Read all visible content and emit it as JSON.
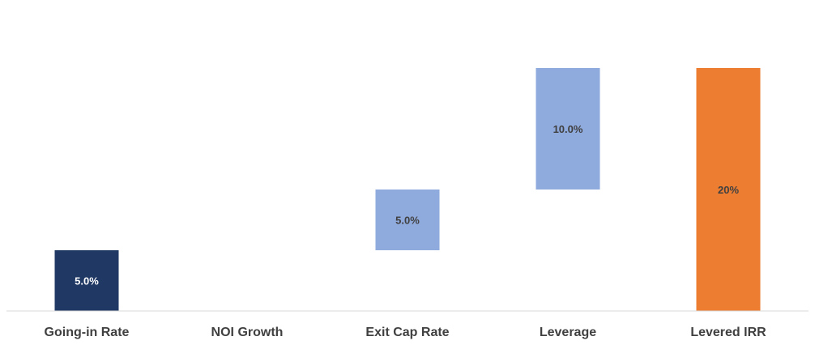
{
  "chart_data": {
    "type": "bar",
    "subtype": "waterfall",
    "categories": [
      "Going-in Rate",
      "NOI Growth",
      "Exit Cap Rate",
      "Leverage",
      "Levered IRR"
    ],
    "values": [
      5.0,
      0.0,
      5.0,
      10.0,
      20.0
    ],
    "bases": [
      0.0,
      5.0,
      5.0,
      10.0,
      0.0
    ],
    "data_labels": [
      "5.0%",
      "",
      "5.0%",
      "10.0%",
      "20%"
    ],
    "ylim": [
      0,
      25
    ],
    "grid": false,
    "legend": "none",
    "title": "",
    "xlabel": "",
    "ylabel": "",
    "colors": {
      "start": "#203864",
      "step": "#8faadc",
      "total": "#ed7d31",
      "axis": "#d9d9d9",
      "label_dark": "#404040",
      "label_light": "#ffffff"
    },
    "bar_roles": [
      "start",
      "step",
      "step",
      "step",
      "total"
    ]
  }
}
